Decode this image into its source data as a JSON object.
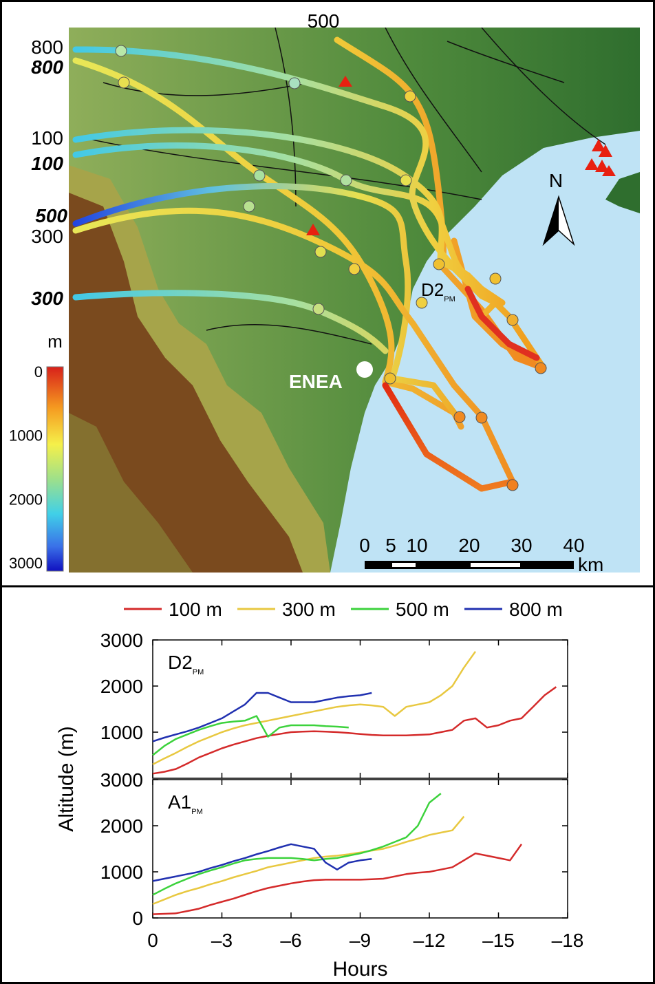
{
  "map": {
    "trajectory_labels": [
      {
        "text": "500",
        "emphasis": false
      },
      {
        "text": "800",
        "emphasis": false
      },
      {
        "text": "800",
        "emphasis": true
      },
      {
        "text": "100",
        "emphasis": false
      },
      {
        "text": "100",
        "emphasis": true
      },
      {
        "text": "500",
        "emphasis": true
      },
      {
        "text": "300",
        "emphasis": false
      },
      {
        "text": "300",
        "emphasis": true
      }
    ],
    "site_label": "ENEA",
    "north_label": "N",
    "trajectory_id": {
      "text": "D2",
      "subscript": "PM"
    },
    "colorbar": {
      "unit": "m",
      "ticks": [
        0,
        1000,
        2000,
        3000
      ]
    },
    "scale_bar": {
      "ticks": [
        0,
        5,
        10,
        20,
        30,
        40
      ],
      "unit": "km"
    }
  },
  "chart_data": [
    {
      "type": "line",
      "title": "D2",
      "title_subscript": "PM",
      "ylabel": "Altitude (m)",
      "x": [
        0,
        -0.5,
        -1,
        -1.5,
        -2,
        -2.5,
        -3,
        -3.5,
        -4,
        -4.5,
        -5,
        -5.5,
        -6,
        -6.5,
        -7,
        -7.5,
        -8,
        -8.5,
        -9,
        -9.5,
        -10,
        -10.5,
        -11,
        -11.5,
        -12,
        -12.5,
        -13,
        -13.5,
        -14,
        -14.5,
        -15,
        -15.5,
        -16,
        -16.5,
        -17,
        -17.5
      ],
      "xlim": [
        0,
        -18
      ],
      "xticks": [
        0,
        -3,
        -6,
        -9,
        -12,
        -15,
        -18
      ],
      "ylim": [
        0,
        3000
      ],
      "yticks": [
        1000,
        2000,
        3000
      ],
      "series": [
        {
          "name": "100 m",
          "color": "#d42a2a",
          "values": [
            100,
            140,
            200,
            320,
            450,
            550,
            650,
            730,
            800,
            870,
            920,
            960,
            1000,
            1010,
            1020,
            1010,
            1000,
            980,
            960,
            940,
            930,
            930,
            930,
            940,
            950,
            1000,
            1050,
            1250,
            1300,
            1100,
            1150,
            1250,
            1300,
            1550,
            1800,
            1980
          ]
        },
        {
          "name": "300 m",
          "color": "#e8c840",
          "values": [
            300,
            430,
            550,
            680,
            800,
            900,
            1000,
            1080,
            1150,
            1200,
            1250,
            1300,
            1350,
            1400,
            1450,
            1500,
            1550,
            1580,
            1600,
            1580,
            1550,
            1350,
            1550,
            1600,
            1650,
            1800,
            2000,
            2400,
            2750,
            null,
            null,
            null,
            null,
            null,
            null,
            null
          ]
        },
        {
          "name": "500 m",
          "color": "#3cd23c",
          "values": [
            500,
            700,
            850,
            950,
            1050,
            1130,
            1200,
            1230,
            1250,
            1350,
            900,
            1100,
            1150,
            1150,
            1150,
            1130,
            1120,
            1100,
            null,
            null,
            null,
            null,
            null,
            null,
            null,
            null,
            null,
            null,
            null,
            null,
            null,
            null,
            null,
            null,
            null,
            null
          ]
        },
        {
          "name": "800 m",
          "color": "#2030b0",
          "values": [
            800,
            880,
            950,
            1020,
            1100,
            1200,
            1300,
            1450,
            1600,
            1850,
            1850,
            1750,
            1650,
            1650,
            1650,
            1700,
            1750,
            1780,
            1800,
            1850,
            null,
            null,
            null,
            null,
            null,
            null,
            null,
            null,
            null,
            null,
            null,
            null,
            null,
            null,
            null,
            null
          ]
        }
      ]
    },
    {
      "type": "line",
      "title": "A1",
      "title_subscript": "PM",
      "xlabel": "Hours",
      "x": [
        0,
        -0.5,
        -1,
        -1.5,
        -2,
        -2.5,
        -3,
        -3.5,
        -4,
        -4.5,
        -5,
        -5.5,
        -6,
        -6.5,
        -7,
        -7.5,
        -8,
        -8.5,
        -9,
        -9.5,
        -10,
        -10.5,
        -11,
        -11.5,
        -12,
        -12.5,
        -13,
        -13.5,
        -14,
        -14.5,
        -15,
        -15.5,
        -16,
        -16.5,
        -17,
        -17.5
      ],
      "xlim": [
        0,
        -18
      ],
      "xticks": [
        0,
        {
          "value": -3,
          "label": "–3"
        },
        {
          "value": -6,
          "label": "–6"
        },
        {
          "value": -9,
          "label": "–9"
        },
        {
          "value": -12,
          "label": "–12"
        },
        {
          "value": -15,
          "label": "–15"
        },
        {
          "value": -18,
          "label": "–18"
        }
      ],
      "ylim": [
        0,
        3000
      ],
      "yticks": [
        0,
        1000,
        2000,
        3000
      ],
      "series": [
        {
          "color": "#d42a2a",
          "values": [
            80,
            90,
            100,
            150,
            200,
            280,
            350,
            420,
            500,
            580,
            650,
            700,
            750,
            790,
            820,
            830,
            830,
            830,
            830,
            840,
            850,
            900,
            950,
            980,
            1000,
            1050,
            1100,
            1250,
            1400,
            1350,
            1300,
            1250,
            1600,
            null,
            null,
            null
          ]
        },
        {
          "color": "#e8c840",
          "values": [
            300,
            400,
            500,
            580,
            650,
            730,
            800,
            880,
            950,
            1020,
            1100,
            1150,
            1200,
            1250,
            1300,
            1330,
            1350,
            1380,
            1420,
            1460,
            1500,
            1570,
            1650,
            1720,
            1800,
            1850,
            1900,
            2200,
            null,
            null,
            null,
            null,
            null,
            null,
            null,
            null
          ]
        },
        {
          "color": "#3cd23c",
          "values": [
            500,
            630,
            750,
            850,
            950,
            1030,
            1100,
            1180,
            1250,
            1280,
            1300,
            1300,
            1300,
            1280,
            1250,
            1280,
            1300,
            1350,
            1400,
            1470,
            1550,
            1650,
            1750,
            2000,
            2500,
            2700,
            null,
            null,
            null,
            null,
            null,
            null,
            null,
            null,
            null,
            null
          ]
        },
        {
          "color": "#2030b0",
          "values": [
            800,
            850,
            900,
            950,
            1000,
            1080,
            1150,
            1230,
            1300,
            1380,
            1450,
            1530,
            1600,
            1550,
            1500,
            1200,
            1050,
            1200,
            1250,
            1280,
            null,
            null,
            null,
            null,
            null,
            null,
            null,
            null,
            null,
            null,
            null,
            null,
            null,
            null,
            null,
            null
          ]
        }
      ]
    }
  ]
}
